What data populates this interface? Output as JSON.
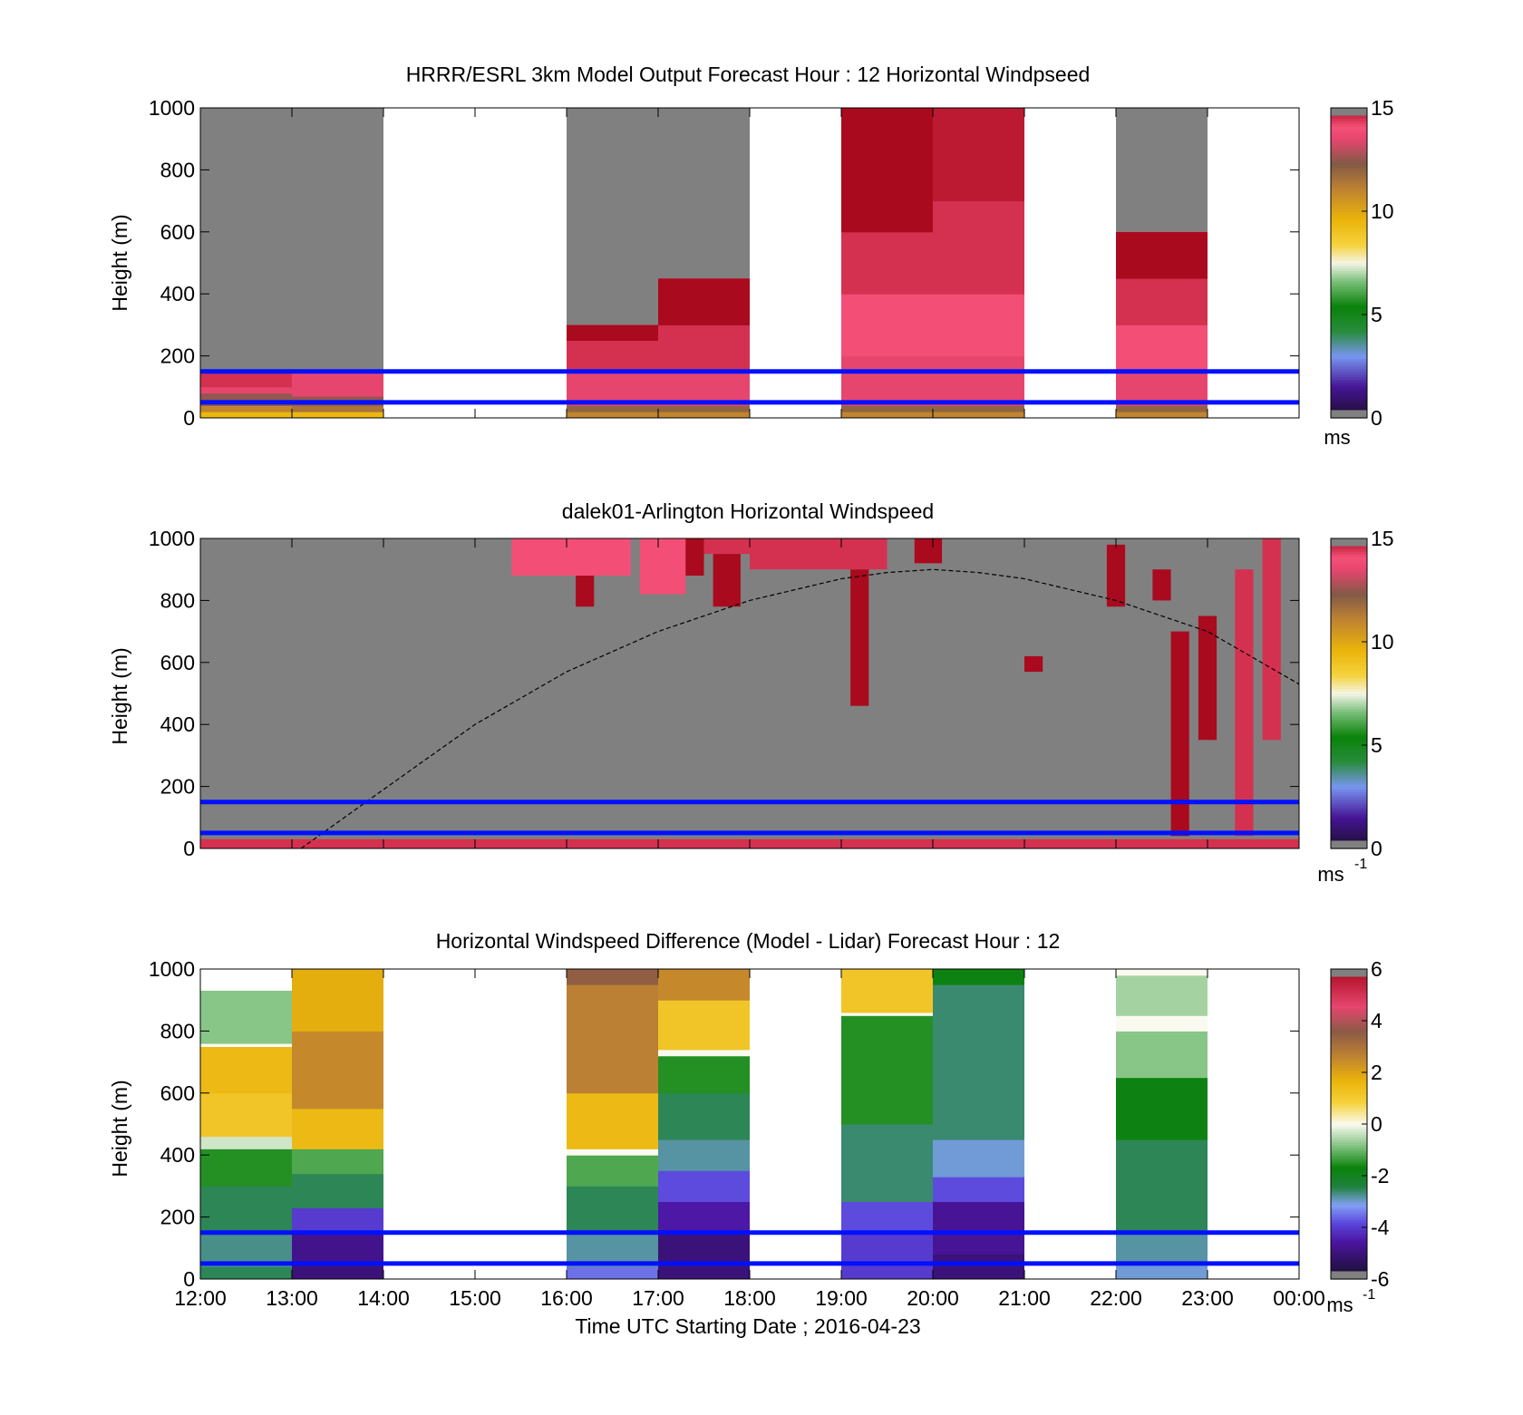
{
  "figure": {
    "x_tick_labels": [
      "12:00",
      "13:00",
      "14:00",
      "15:00",
      "16:00",
      "17:00",
      "18:00",
      "19:00",
      "20:00",
      "21:00",
      "22:00",
      "23:00",
      "00:00"
    ],
    "x_axis_label": "Time UTC  Starting Date ; 2016-04-23"
  },
  "chart_data": [
    {
      "type": "heatmap",
      "title": "HRRR/ESRL 3km Model Output   Forecast Hour : 12 Horizontal Windpseed",
      "ylabel": "Height (m)",
      "ylim": [
        0,
        1000
      ],
      "y_ticks": [
        "0",
        "200",
        "400",
        "600",
        "800",
        "1000"
      ],
      "xlim_hours_utc": [
        12,
        24
      ],
      "colorbar": {
        "range": [
          0,
          15
        ],
        "ticks": [
          "0",
          "5",
          "10",
          "15"
        ],
        "unit": "ms",
        "unit_exp": ""
      },
      "reference_lines_m": [
        50,
        150
      ],
      "columns": [
        {
          "start": 12,
          "end": 13,
          "valid_top": 150,
          "bands": [
            [
              0,
              20,
              9.5
            ],
            [
              20,
              40,
              11
            ],
            [
              40,
              80,
              12.5
            ],
            [
              80,
              100,
              13.5
            ],
            [
              100,
              150,
              14.5
            ]
          ]
        },
        {
          "start": 13,
          "end": 14,
          "valid_top": 150,
          "bands": [
            [
              0,
              20,
              9.5
            ],
            [
              20,
              40,
              11.5
            ],
            [
              40,
              70,
              12.5
            ],
            [
              70,
              100,
              13.5
            ],
            [
              100,
              150,
              13.5
            ]
          ]
        },
        {
          "start": 16,
          "end": 17,
          "valid_top": 300,
          "bands": [
            [
              0,
              20,
              11
            ],
            [
              20,
              40,
              12
            ],
            [
              40,
              100,
              13.5
            ],
            [
              100,
              150,
              13.5
            ],
            [
              150,
              250,
              14.5
            ],
            [
              250,
              300,
              15
            ]
          ]
        },
        {
          "start": 17,
          "end": 18,
          "valid_top": 450,
          "bands": [
            [
              0,
              20,
              11
            ],
            [
              20,
              40,
              12
            ],
            [
              40,
              100,
              13.5
            ],
            [
              100,
              150,
              13.5
            ],
            [
              150,
              300,
              14.5
            ],
            [
              300,
              450,
              15
            ]
          ]
        },
        {
          "start": 19,
          "end": 20,
          "valid_top": 1000,
          "bands": [
            [
              0,
              20,
              11
            ],
            [
              20,
              40,
              12
            ],
            [
              40,
              100,
              13.5
            ],
            [
              100,
              200,
              13.5
            ],
            [
              200,
              400,
              14
            ],
            [
              400,
              600,
              14.5
            ],
            [
              600,
              1000,
              15
            ]
          ]
        },
        {
          "start": 20,
          "end": 21,
          "valid_top": 1000,
          "bands": [
            [
              0,
              20,
              11
            ],
            [
              20,
              40,
              12
            ],
            [
              40,
              100,
              13.5
            ],
            [
              100,
              200,
              13.5
            ],
            [
              200,
              400,
              14
            ],
            [
              400,
              700,
              14.5
            ],
            [
              700,
              1000,
              14.8
            ]
          ]
        },
        {
          "start": 22,
          "end": 23,
          "valid_top": 600,
          "bands": [
            [
              0,
              20,
              11
            ],
            [
              20,
              40,
              12
            ],
            [
              40,
              100,
              13.5
            ],
            [
              100,
              150,
              13.5
            ],
            [
              150,
              300,
              14
            ],
            [
              300,
              450,
              14.5
            ],
            [
              450,
              600,
              15
            ]
          ]
        }
      ]
    },
    {
      "type": "heatmap",
      "title": "dalek01-Arlington  Horizontal Windspeed",
      "ylabel": "Height (m)",
      "ylim": [
        0,
        1000
      ],
      "y_ticks": [
        "0",
        "200",
        "400",
        "600",
        "800",
        "1000"
      ],
      "xlim_hours_utc": [
        12,
        24
      ],
      "colorbar": {
        "range": [
          0,
          15
        ],
        "ticks": [
          "0",
          "5",
          "10",
          "15"
        ],
        "unit": "ms",
        "unit_exp": "-1"
      },
      "reference_lines_m": [
        50,
        150
      ],
      "background": "gray (no valid data)",
      "boundary_layer_curve": {
        "x": [
          13.1,
          14,
          15,
          16,
          17,
          18,
          19,
          19.5,
          20,
          20.5,
          21,
          22,
          23,
          24
        ],
        "y": [
          0,
          190,
          400,
          570,
          700,
          800,
          870,
          890,
          900,
          890,
          870,
          800,
          700,
          530
        ]
      },
      "data_segments": [
        {
          "x0": 12.0,
          "x1": 24.0,
          "y0": 0,
          "y1": 30,
          "v": 14.5
        },
        {
          "x0": 15.4,
          "x1": 16.7,
          "y0": 880,
          "y1": 1000,
          "v": 14
        },
        {
          "x0": 16.1,
          "x1": 16.3,
          "y0": 780,
          "y1": 880,
          "v": 15
        },
        {
          "x0": 16.8,
          "x1": 17.3,
          "y0": 820,
          "y1": 1000,
          "v": 14
        },
        {
          "x0": 17.3,
          "x1": 17.5,
          "y0": 880,
          "y1": 1000,
          "v": 15
        },
        {
          "x0": 17.5,
          "x1": 18.0,
          "y0": 950,
          "y1": 1000,
          "v": 14.5
        },
        {
          "x0": 17.6,
          "x1": 17.9,
          "y0": 780,
          "y1": 950,
          "v": 15
        },
        {
          "x0": 18.0,
          "x1": 19.5,
          "y0": 900,
          "y1": 1000,
          "v": 14.5
        },
        {
          "x0": 19.1,
          "x1": 19.3,
          "y0": 460,
          "y1": 900,
          "v": 15
        },
        {
          "x0": 19.8,
          "x1": 20.1,
          "y0": 920,
          "y1": 1000,
          "v": 15
        },
        {
          "x0": 21.0,
          "x1": 21.2,
          "y0": 570,
          "y1": 620,
          "v": 15
        },
        {
          "x0": 21.9,
          "x1": 22.1,
          "y0": 780,
          "y1": 980,
          "v": 15
        },
        {
          "x0": 22.4,
          "x1": 22.6,
          "y0": 800,
          "y1": 900,
          "v": 15
        },
        {
          "x0": 22.6,
          "x1": 22.8,
          "y0": 40,
          "y1": 700,
          "v": 15
        },
        {
          "x0": 22.9,
          "x1": 23.1,
          "y0": 350,
          "y1": 750,
          "v": 15
        },
        {
          "x0": 23.3,
          "x1": 23.5,
          "y0": 40,
          "y1": 900,
          "v": 14.5
        },
        {
          "x0": 23.6,
          "x1": 23.8,
          "y0": 350,
          "y1": 1000,
          "v": 14.5
        }
      ]
    },
    {
      "type": "heatmap",
      "title": "Horizontal Windspeed Difference (Model - Lidar) Forecast Hour : 12",
      "ylabel": "Height (m)",
      "ylim": [
        0,
        1000
      ],
      "y_ticks": [
        "0",
        "200",
        "400",
        "600",
        "800",
        "1000"
      ],
      "xlim_hours_utc": [
        12,
        24
      ],
      "colorbar": {
        "range": [
          -6,
          6
        ],
        "ticks": [
          "-6",
          "-4",
          "-2",
          "0",
          "2",
          "4",
          "6"
        ],
        "unit": "ms",
        "unit_exp": "-1"
      },
      "reference_lines_m": [
        50,
        150
      ],
      "columns": [
        {
          "start": 12,
          "end": 13,
          "valid_top": 930,
          "bands": [
            [
              0,
              40,
              -2.5
            ],
            [
              40,
              150,
              -2.7
            ],
            [
              150,
              300,
              -2.5
            ],
            [
              300,
              420,
              -1.5
            ],
            [
              420,
              460,
              -0.3
            ],
            [
              460,
              600,
              1.2
            ],
            [
              600,
              750,
              1.5
            ],
            [
              750,
              760,
              0
            ],
            [
              760,
              930,
              -0.8
            ]
          ]
        },
        {
          "start": 13,
          "end": 14,
          "valid_top": 1000,
          "bands": [
            [
              0,
              50,
              -5
            ],
            [
              50,
              150,
              -4.8
            ],
            [
              150,
              230,
              -4
            ],
            [
              230,
              340,
              -2.5
            ],
            [
              340,
              420,
              -1.2
            ],
            [
              420,
              550,
              1.5
            ],
            [
              550,
              800,
              2.5
            ],
            [
              800,
              1000,
              1.8
            ]
          ]
        },
        {
          "start": 16,
          "end": 17,
          "valid_top": 1000,
          "bands": [
            [
              0,
              40,
              -3.5
            ],
            [
              40,
              150,
              -2.8
            ],
            [
              150,
              300,
              -2.5
            ],
            [
              300,
              400,
              -1.2
            ],
            [
              400,
              420,
              0
            ],
            [
              420,
              600,
              1.5
            ],
            [
              600,
              950,
              2.7
            ],
            [
              950,
              1000,
              3.5
            ]
          ]
        },
        {
          "start": 17,
          "end": 18,
          "valid_top": 1000,
          "bands": [
            [
              0,
              150,
              -5
            ],
            [
              150,
              250,
              -4.5
            ],
            [
              250,
              350,
              -3.8
            ],
            [
              350,
              450,
              -2.8
            ],
            [
              450,
              600,
              -2.5
            ],
            [
              600,
              720,
              -1.5
            ],
            [
              720,
              740,
              0
            ],
            [
              740,
              900,
              1.2
            ],
            [
              900,
              1000,
              2.5
            ]
          ]
        },
        {
          "start": 19,
          "end": 20,
          "valid_top": 1000,
          "bands": [
            [
              0,
              150,
              -4
            ],
            [
              150,
              250,
              -3.8
            ],
            [
              250,
              500,
              -2.6
            ],
            [
              500,
              850,
              -1.5
            ],
            [
              850,
              860,
              0
            ],
            [
              860,
              1000,
              1.2
            ]
          ]
        },
        {
          "start": 20,
          "end": 21,
          "valid_top": 1000,
          "bands": [
            [
              0,
              80,
              -5
            ],
            [
              80,
              250,
              -4.7
            ],
            [
              250,
              330,
              -3.8
            ],
            [
              330,
              450,
              -3
            ],
            [
              450,
              950,
              -2.6
            ],
            [
              950,
              1000,
              -1.8
            ]
          ]
        },
        {
          "start": 22,
          "end": 23,
          "valid_top": 1000,
          "bands": [
            [
              0,
              50,
              -3
            ],
            [
              50,
              150,
              -2.8
            ],
            [
              150,
              450,
              -2.5
            ],
            [
              450,
              650,
              -1.8
            ],
            [
              650,
              800,
              -0.8
            ],
            [
              800,
              850,
              0
            ],
            [
              850,
              980,
              -0.6
            ],
            [
              980,
              1000,
              0
            ]
          ]
        }
      ]
    }
  ]
}
